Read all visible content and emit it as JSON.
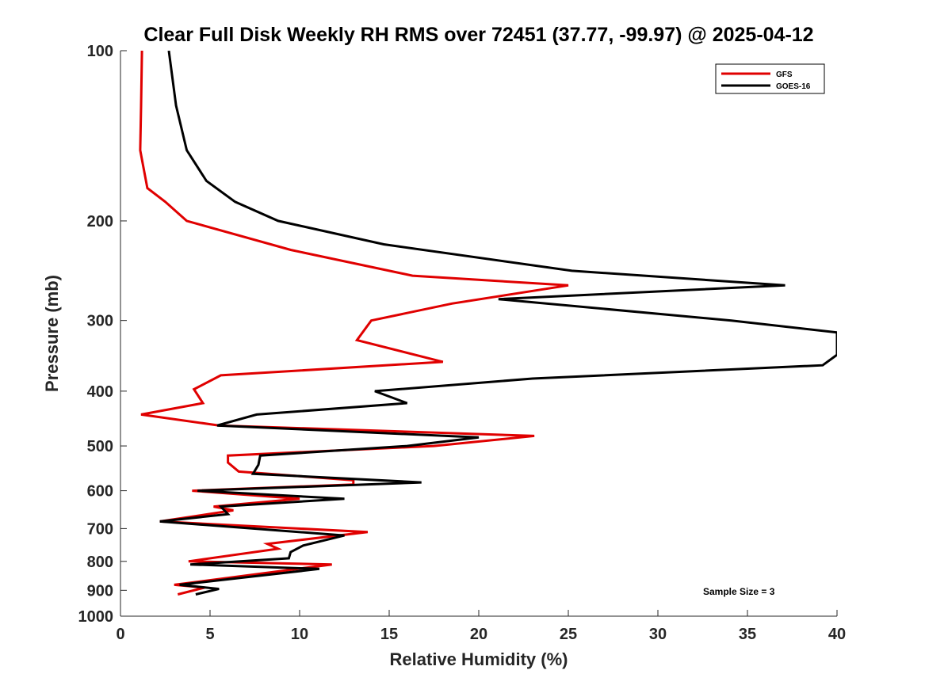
{
  "chart_data": {
    "type": "line",
    "title": "Clear Full Disk Weekly RH RMS over 72451 (37.77, -99.97) @ 2025-04-12",
    "xlabel": "Relative Humidity (%)",
    "ylabel": "Pressure (mb)",
    "xlim": [
      0,
      40
    ],
    "ylim": [
      100,
      1000
    ],
    "y_scale": "log",
    "y_reversed": true,
    "x_ticks": [
      0,
      5,
      10,
      15,
      20,
      25,
      30,
      35,
      40
    ],
    "y_ticks": [
      100,
      200,
      300,
      400,
      500,
      600,
      700,
      800,
      900,
      1000
    ],
    "legend_position": "top-right",
    "annotation": "Sample Size = 3",
    "series": [
      {
        "name": "GFS",
        "color": "#e00000",
        "points": [
          [
            1.2,
            100
          ],
          [
            1.15,
            125
          ],
          [
            1.1,
            150
          ],
          [
            1.5,
            175
          ],
          [
            2.5,
            185
          ],
          [
            3.7,
            200
          ],
          [
            9.5,
            225
          ],
          [
            16.3,
            250
          ],
          [
            25.0,
            260
          ],
          [
            18.5,
            280
          ],
          [
            14.0,
            300
          ],
          [
            13.2,
            325
          ],
          [
            18.0,
            355
          ],
          [
            5.6,
            375
          ],
          [
            4.1,
            397
          ],
          [
            4.6,
            420
          ],
          [
            1.15,
            440
          ],
          [
            5.5,
            460
          ],
          [
            23.1,
            480
          ],
          [
            17.5,
            500
          ],
          [
            6.0,
            520
          ],
          [
            6.0,
            535
          ],
          [
            6.6,
            555
          ],
          [
            13.0,
            575
          ],
          [
            13.0,
            585
          ],
          [
            4.0,
            600
          ],
          [
            10.0,
            620
          ],
          [
            5.2,
            640
          ],
          [
            6.3,
            650
          ],
          [
            2.2,
            680
          ],
          [
            13.8,
            710
          ],
          [
            8.2,
            745
          ],
          [
            8.8,
            760
          ],
          [
            3.8,
            800
          ],
          [
            11.8,
            810
          ],
          [
            3.0,
            880
          ],
          [
            4.7,
            890
          ],
          [
            3.2,
            915
          ]
        ]
      },
      {
        "name": "GOES-16",
        "color": "#000000",
        "points": [
          [
            2.7,
            100
          ],
          [
            3.1,
            125
          ],
          [
            3.7,
            150
          ],
          [
            4.8,
            170
          ],
          [
            6.4,
            185
          ],
          [
            8.8,
            200
          ],
          [
            14.7,
            220
          ],
          [
            25.2,
            245
          ],
          [
            37.1,
            260
          ],
          [
            21.1,
            275
          ],
          [
            34.1,
            300
          ],
          [
            40.0,
            315
          ],
          [
            40.0,
            345
          ],
          [
            39.2,
            360
          ],
          [
            23.0,
            380
          ],
          [
            14.2,
            400
          ],
          [
            16.0,
            420
          ],
          [
            7.6,
            440
          ],
          [
            5.4,
            460
          ],
          [
            20.0,
            483
          ],
          [
            16.0,
            500
          ],
          [
            7.8,
            520
          ],
          [
            7.7,
            540
          ],
          [
            7.4,
            560
          ],
          [
            16.8,
            580
          ],
          [
            4.3,
            600
          ],
          [
            12.5,
            620
          ],
          [
            5.6,
            640
          ],
          [
            6.0,
            660
          ],
          [
            2.2,
            680
          ],
          [
            12.5,
            720
          ],
          [
            10.2,
            750
          ],
          [
            9.5,
            770
          ],
          [
            9.4,
            790
          ],
          [
            3.9,
            810
          ],
          [
            11.1,
            825
          ],
          [
            3.3,
            880
          ],
          [
            5.5,
            895
          ],
          [
            4.2,
            915
          ]
        ]
      }
    ]
  }
}
